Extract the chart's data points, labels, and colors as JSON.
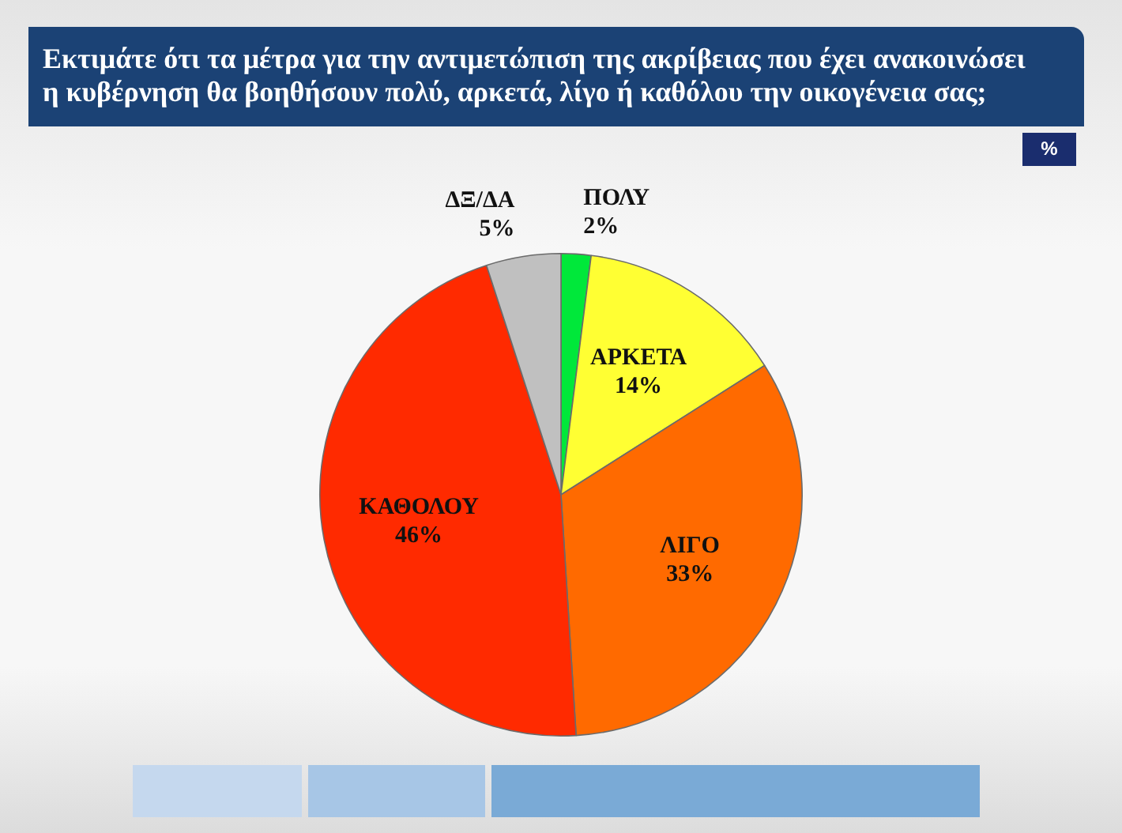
{
  "chart_data": {
    "type": "pie",
    "title": "Εκτιμάτε ότι τα μέτρα για την αντιμετώπιση της ακρίβειας που έχει ανακοινώσει η κυβέρνηση θα βοηθήσουν πολύ, αρκετά, λίγο ή καθόλου την οικογένεια σας;",
    "categories": [
      "ΠΟΛΥ",
      "ΑΡΚΕΤΑ",
      "ΛΙΓΟ",
      "ΚΑΘΟΛΟΥ",
      "ΔΞ/ΔΑ"
    ],
    "values": [
      2,
      14,
      33,
      46,
      5
    ],
    "colors": [
      "#00e83a",
      "#ffff33",
      "#ff6a00",
      "#ff2a00",
      "#c0c0c0"
    ],
    "value_labels": [
      "2%",
      "14%",
      "33%",
      "46%",
      "5%"
    ],
    "annotations": [
      "%"
    ]
  }
}
